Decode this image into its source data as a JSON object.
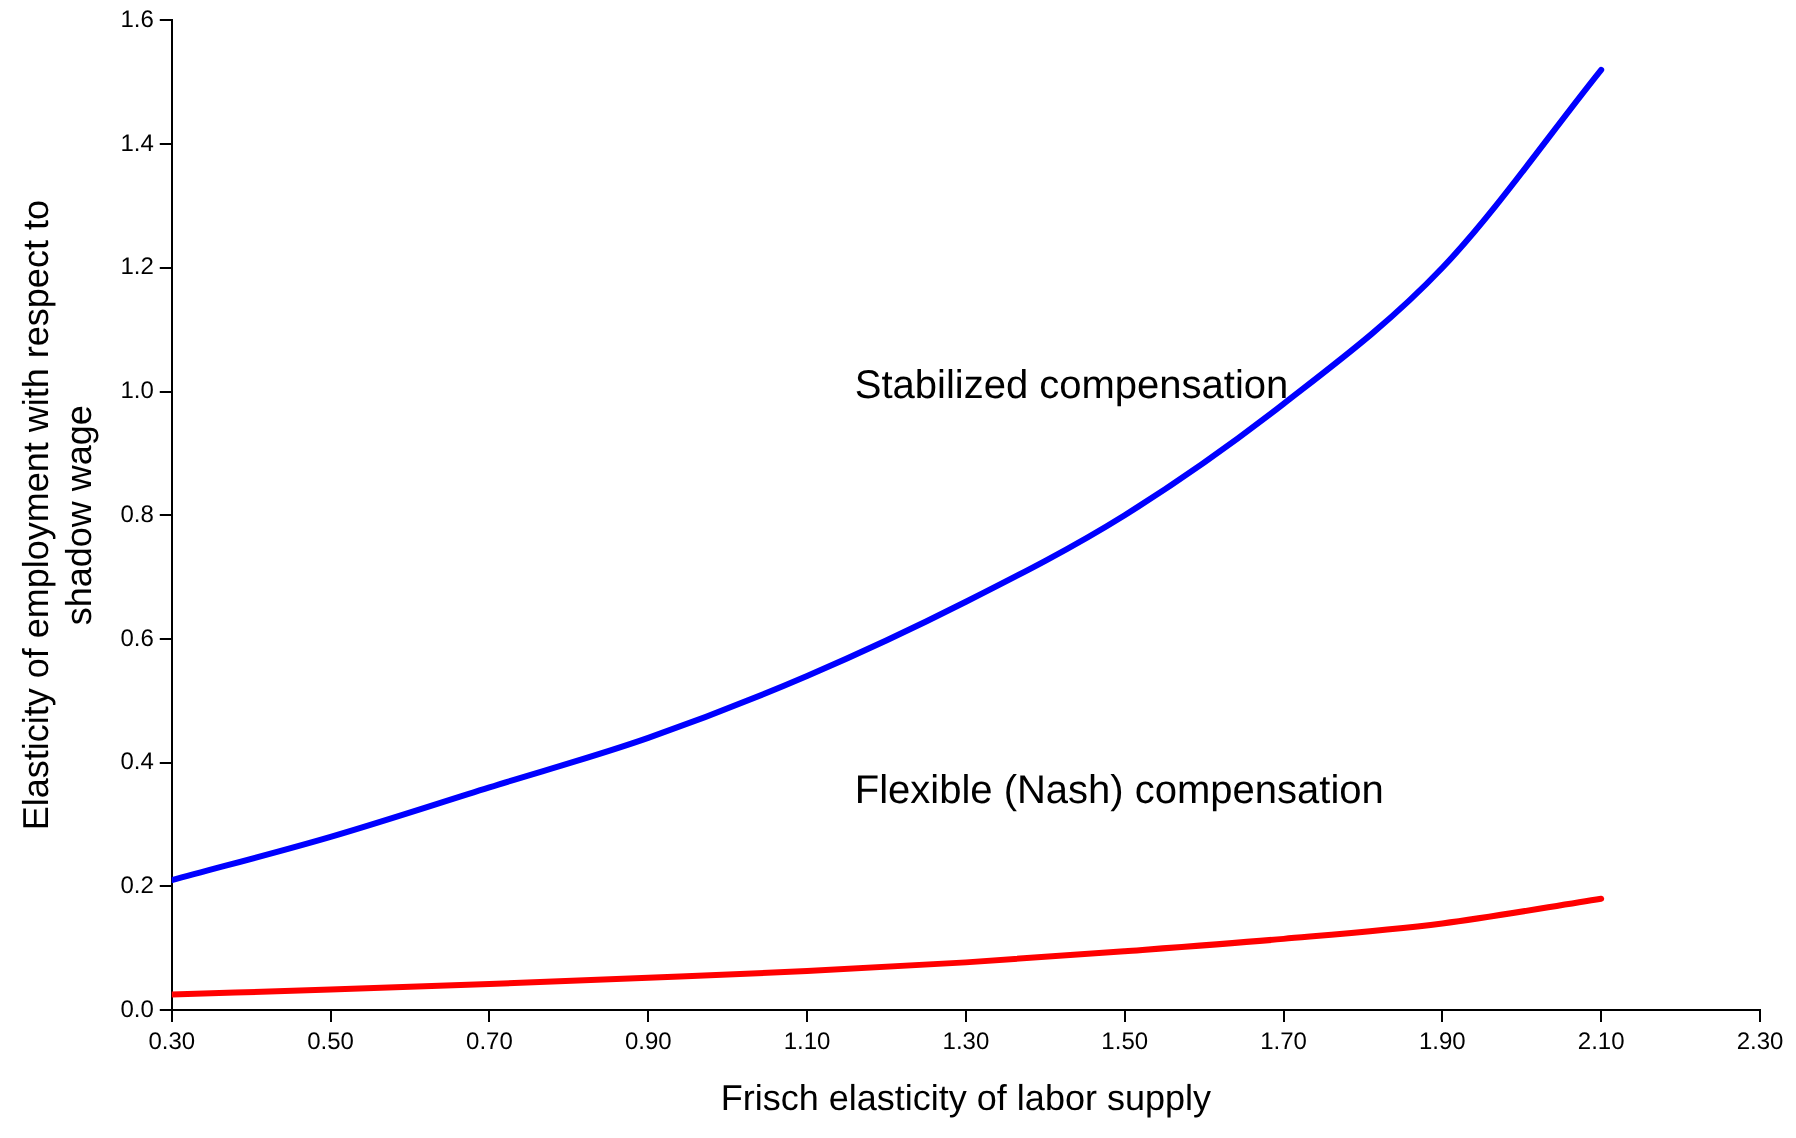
{
  "chart_data": {
    "type": "line",
    "xlabel": "Frisch elasticity of labor supply",
    "ylabel": "Elasticity of employment with respect to shadow wage",
    "x": [
      0.3,
      0.5,
      0.7,
      0.9,
      1.1,
      1.3,
      1.5,
      1.7,
      1.9,
      2.1
    ],
    "series": [
      {
        "name": "Stabilized compensation",
        "color": "#0000ff",
        "values": [
          0.21,
          0.28,
          0.36,
          0.44,
          0.54,
          0.66,
          0.8,
          0.98,
          1.2,
          1.52
        ]
      },
      {
        "name": "Flexible (Nash) compensation",
        "color": "#ff0000",
        "values": [
          0.025,
          0.033,
          0.042,
          0.052,
          0.063,
          0.077,
          0.095,
          0.115,
          0.14,
          0.18
        ]
      }
    ],
    "xlim": [
      0.3,
      2.3
    ],
    "xticks": [
      {
        "value": 0.3,
        "label": "0.30"
      },
      {
        "value": 0.5,
        "label": "0.50"
      },
      {
        "value": 0.7,
        "label": "0.70"
      },
      {
        "value": 0.9,
        "label": "0.90"
      },
      {
        "value": 1.1,
        "label": "1.10"
      },
      {
        "value": 1.3,
        "label": "1.30"
      },
      {
        "value": 1.5,
        "label": "1.50"
      },
      {
        "value": 1.7,
        "label": "1.70"
      },
      {
        "value": 1.9,
        "label": "1.90"
      },
      {
        "value": 2.1,
        "label": "2.10"
      },
      {
        "value": 2.3,
        "label": "2.30"
      }
    ],
    "ylim": [
      0,
      1.6
    ],
    "yticks": [
      {
        "value": 0,
        "label": "0.0"
      },
      {
        "value": 0.2,
        "label": "0.2"
      },
      {
        "value": 0.4,
        "label": "0.4"
      },
      {
        "value": 0.6,
        "label": "0.6"
      },
      {
        "value": 0.8,
        "label": "0.8"
      },
      {
        "value": 1,
        "label": "1.0"
      },
      {
        "value": 1.2,
        "label": "1.2"
      },
      {
        "value": 1.4,
        "label": "1.4"
      },
      {
        "value": 1.6,
        "label": "1.6"
      }
    ],
    "grid": false,
    "legend": false,
    "marker": "none",
    "line_style": "solid"
  }
}
